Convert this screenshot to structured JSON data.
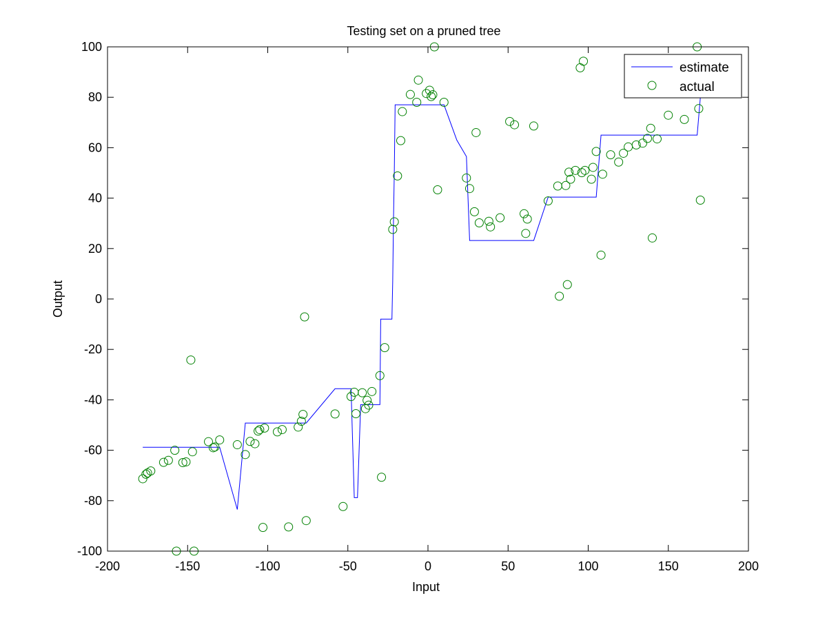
{
  "chart_data": {
    "type": "line",
    "title": "Testing set on a pruned tree",
    "xlabel": "Input",
    "ylabel": "Output",
    "xlim": [
      -200,
      200
    ],
    "ylim": [
      -100,
      100
    ],
    "xticks": [
      -200,
      -150,
      -100,
      -50,
      0,
      50,
      100,
      150,
      200
    ],
    "yticks": [
      -100,
      -80,
      -60,
      -40,
      -20,
      0,
      20,
      40,
      60,
      80,
      100
    ],
    "xtick_labels": [
      "-200",
      "-150",
      "-100",
      "-50",
      "0",
      "50",
      "100",
      "150",
      "200"
    ],
    "ytick_labels": [
      "-100",
      "-80",
      "-60",
      "-40",
      "-20",
      "0",
      "20",
      "40",
      "60",
      "80",
      "100"
    ],
    "grid": false,
    "legend_position": "top-right",
    "series": [
      {
        "name": "estimate",
        "kind": "line",
        "color": "#0000ff",
        "points": [
          [
            -178,
            -58.8
          ],
          [
            -130,
            -58.8
          ],
          [
            -119,
            -83.5
          ],
          [
            -114,
            -49.2
          ],
          [
            -110,
            -49.2
          ],
          [
            -76,
            -49.2
          ],
          [
            -58,
            -35.6
          ],
          [
            -48,
            -35.6
          ],
          [
            -46,
            -78.8
          ],
          [
            -44,
            -78.8
          ],
          [
            -42,
            -41.9
          ],
          [
            -30,
            -41.9
          ],
          [
            -29.5,
            -8.0
          ],
          [
            -22.5,
            -8.0
          ],
          [
            -22,
            7.0
          ],
          [
            -21.5,
            32.0
          ],
          [
            -21,
            51.0
          ],
          [
            -20.5,
            77.0
          ],
          [
            10,
            77.0
          ],
          [
            18,
            63.0
          ],
          [
            24,
            56.5
          ],
          [
            26,
            23.2
          ],
          [
            66,
            23.2
          ],
          [
            75,
            40.4
          ],
          [
            105,
            40.4
          ],
          [
            108,
            65.0
          ],
          [
            168,
            65.0
          ],
          [
            170,
            80.0
          ],
          [
            174,
            80.0
          ]
        ]
      },
      {
        "name": "actual",
        "kind": "scatter",
        "color": "#008000",
        "points": [
          [
            -178,
            -71.3
          ],
          [
            -176,
            -69.5
          ],
          [
            -175,
            -69.0
          ],
          [
            -173,
            -68.2
          ],
          [
            -165,
            -64.8
          ],
          [
            -162,
            -64.0
          ],
          [
            -158,
            -60.0
          ],
          [
            -157,
            -100
          ],
          [
            -153,
            -64.9
          ],
          [
            -151,
            -64.6
          ],
          [
            -148,
            -24.2
          ],
          [
            -147,
            -60.6
          ],
          [
            -146,
            -100
          ],
          [
            -137,
            -56.6
          ],
          [
            -134,
            -59.0
          ],
          [
            -133,
            -58.7
          ],
          [
            -130,
            -55.9
          ],
          [
            -119,
            -57.8
          ],
          [
            -114,
            -61.7
          ],
          [
            -111,
            -56.5
          ],
          [
            -108,
            -57.4
          ],
          [
            -106,
            -52.4
          ],
          [
            -105,
            -51.8
          ],
          [
            -103,
            -90.6
          ],
          [
            -102,
            -51.2
          ],
          [
            -94,
            -52.7
          ],
          [
            -91,
            -51.8
          ],
          [
            -87,
            -90.4
          ],
          [
            -81,
            -50.8
          ],
          [
            -79,
            -48.5
          ],
          [
            -78,
            -45.8
          ],
          [
            -77,
            -7.1
          ],
          [
            -76,
            -87.9
          ],
          [
            -58,
            -45.6
          ],
          [
            -53,
            -82.3
          ],
          [
            -48,
            -38.7
          ],
          [
            -46,
            -37.0
          ],
          [
            -45,
            -45.5
          ],
          [
            -41,
            -37.2
          ],
          [
            -39,
            -43.5
          ],
          [
            -38,
            -40.2
          ],
          [
            -37,
            -42.1
          ],
          [
            -35,
            -36.7
          ],
          [
            -30,
            -30.4
          ],
          [
            -29,
            -70.7
          ],
          [
            -27,
            -19.3
          ],
          [
            -22,
            27.6
          ],
          [
            -21,
            30.6
          ],
          [
            -19,
            48.8
          ],
          [
            -17,
            62.8
          ],
          [
            -16,
            74.3
          ],
          [
            -11,
            81.1
          ],
          [
            -7,
            78.0
          ],
          [
            -6,
            86.8
          ],
          [
            -1,
            81.5
          ],
          [
            1,
            82.8
          ],
          [
            2,
            80.3
          ],
          [
            3,
            81.0
          ],
          [
            4,
            100
          ],
          [
            6,
            43.3
          ],
          [
            10,
            78.0
          ],
          [
            24,
            48.0
          ],
          [
            26,
            43.8
          ],
          [
            29,
            34.6
          ],
          [
            30,
            66.0
          ],
          [
            32,
            30.2
          ],
          [
            38,
            30.8
          ],
          [
            39,
            28.6
          ],
          [
            45,
            32.2
          ],
          [
            51,
            70.4
          ],
          [
            54,
            69.1
          ],
          [
            60,
            33.8
          ],
          [
            61,
            26.0
          ],
          [
            62,
            31.7
          ],
          [
            66,
            68.6
          ],
          [
            75,
            38.9
          ],
          [
            81,
            44.8
          ],
          [
            82,
            1.1
          ],
          [
            86,
            45.0
          ],
          [
            87,
            5.7
          ],
          [
            88,
            50.3
          ],
          [
            89,
            47.5
          ],
          [
            92,
            51.0
          ],
          [
            95,
            91.7
          ],
          [
            96,
            50.1
          ],
          [
            97,
            94.3
          ],
          [
            98,
            51.0
          ],
          [
            102,
            47.5
          ],
          [
            103,
            52.2
          ],
          [
            105,
            58.5
          ],
          [
            108,
            17.4
          ],
          [
            109,
            49.5
          ],
          [
            114,
            57.2
          ],
          [
            119,
            54.3
          ],
          [
            122,
            57.8
          ],
          [
            125,
            60.3
          ],
          [
            130,
            61.1
          ],
          [
            134,
            61.8
          ],
          [
            137,
            63.7
          ],
          [
            139,
            67.7
          ],
          [
            140,
            24.2
          ],
          [
            143,
            63.5
          ],
          [
            150,
            72.9
          ],
          [
            160,
            71.2
          ],
          [
            168,
            100
          ],
          [
            169,
            75.5
          ],
          [
            170,
            39.2
          ]
        ]
      }
    ]
  }
}
